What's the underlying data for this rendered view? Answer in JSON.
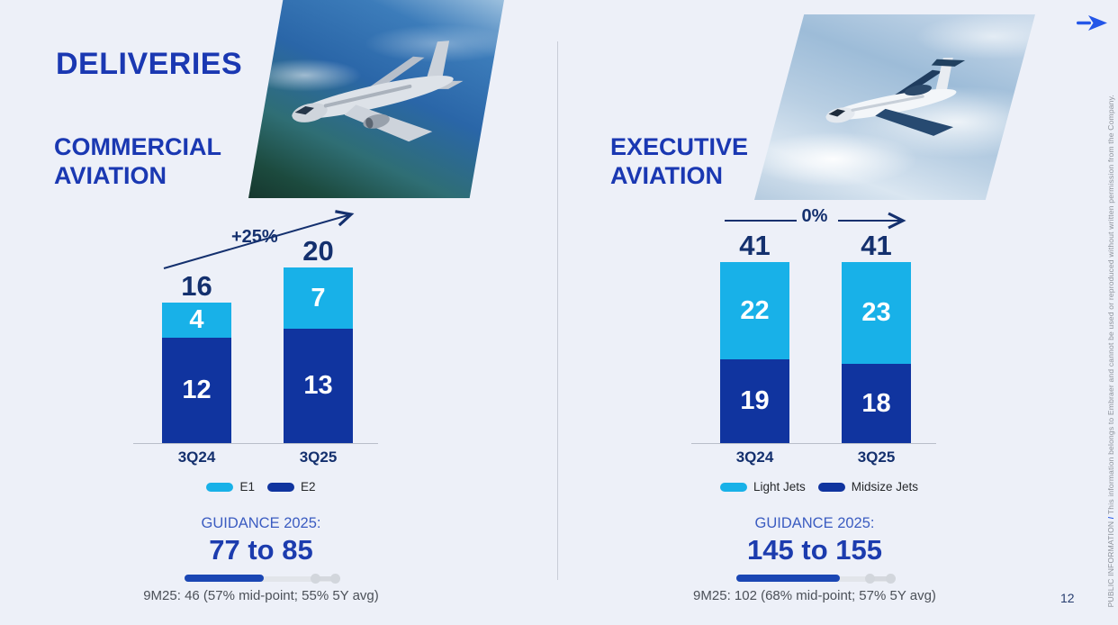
{
  "slide": {
    "title": "DELIVERIES",
    "page_number": "12",
    "vertical_footer": {
      "classification": "PUBLIC INFORMATION",
      "separator": " / ",
      "disclaimer": "This information belongs to Embraer and cannot be used or reproduced without written permission from the Company."
    }
  },
  "colors": {
    "light_blue": "#18b1e8",
    "dark_blue": "#10349f",
    "heading_blue": "#1a38b2",
    "navy": "#14306e",
    "guidance_label_blue": "#3b5cc1",
    "guidance_range_blue": "#1c3cae",
    "progress_fill": "#1a46b4"
  },
  "commercial": {
    "heading": "COMMERCIAL AVIATION",
    "growth_label": "+25%",
    "guidance": {
      "label": "GUIDANCE 2025:",
      "range": "77 to 85",
      "note": "9M25: 46 (57% mid-point; 55% 5Y avg)",
      "fill_pct": 52
    }
  },
  "executive": {
    "heading": "EXECUTIVE AVIATION",
    "growth_label": "0%",
    "guidance": {
      "label": "GUIDANCE 2025:",
      "range": "145 to 155",
      "note": "9M25: 102 (68% mid-point; 57% 5Y avg)",
      "fill_pct": 66
    }
  },
  "chart_data": [
    {
      "type": "bar",
      "stacked": true,
      "section": "COMMERCIAL AVIATION",
      "categories": [
        "3Q24",
        "3Q25"
      ],
      "series": [
        {
          "name": "E1",
          "color_key": "light_blue",
          "values": [
            4,
            7
          ]
        },
        {
          "name": "E2",
          "color_key": "dark_blue",
          "values": [
            12,
            13
          ]
        }
      ],
      "totals": [
        16,
        20
      ],
      "growth": "+25%",
      "ylim": [
        0,
        20
      ],
      "legend_position": "bottom"
    },
    {
      "type": "bar",
      "stacked": true,
      "section": "EXECUTIVE AVIATION",
      "categories": [
        "3Q24",
        "3Q25"
      ],
      "series": [
        {
          "name": "Light Jets",
          "color_key": "light_blue",
          "values": [
            22,
            23
          ]
        },
        {
          "name": "Midsize Jets",
          "color_key": "dark_blue",
          "values": [
            19,
            18
          ]
        }
      ],
      "totals": [
        41,
        41
      ],
      "growth": "0%",
      "ylim": [
        0,
        41
      ],
      "legend_position": "bottom"
    }
  ]
}
